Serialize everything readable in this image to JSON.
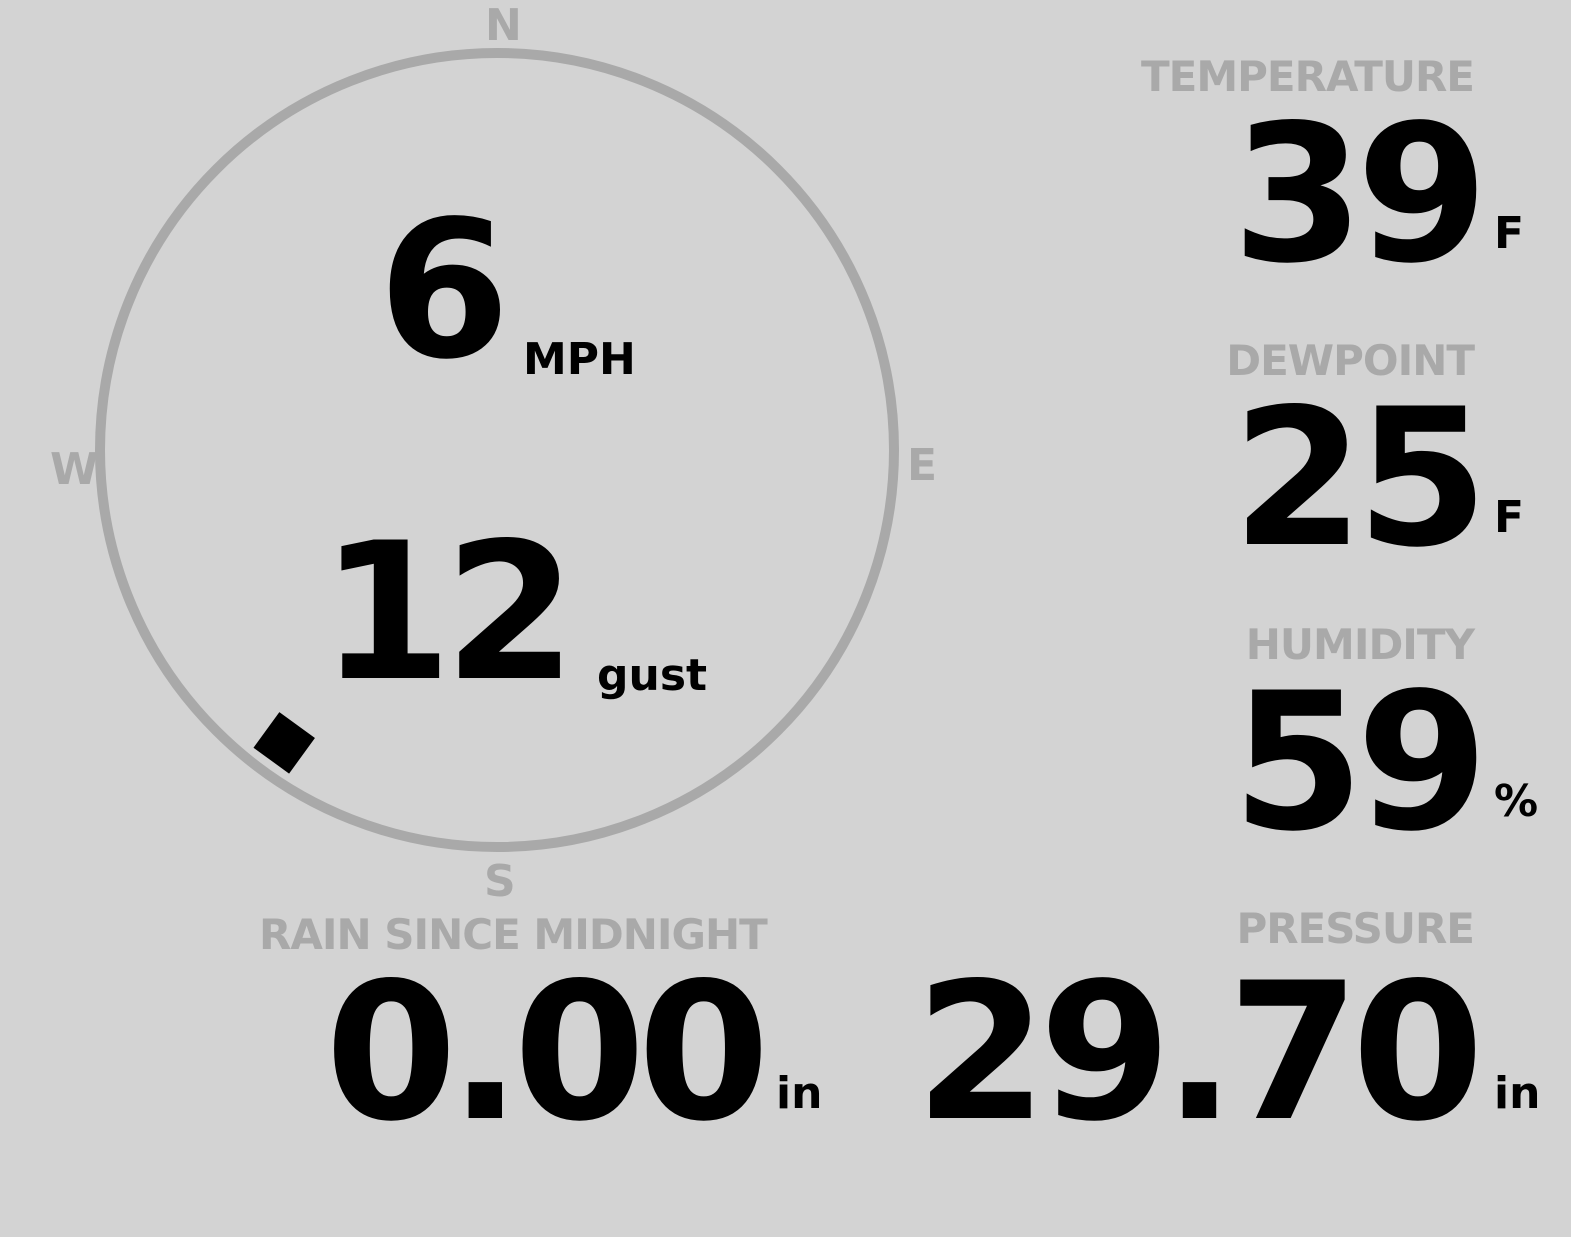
{
  "wind": {
    "speed": "6",
    "speed_unit": "MPH",
    "gust": "12",
    "gust_unit": "gust",
    "direction_deg": 216,
    "compass": {
      "n": "N",
      "e": "E",
      "s": "S",
      "w": "W"
    }
  },
  "temperature": {
    "label": "TEMPERATURE",
    "value": "39",
    "unit": "F"
  },
  "dewpoint": {
    "label": "DEWPOINT",
    "value": "25",
    "unit": "F"
  },
  "humidity": {
    "label": "HUMIDITY",
    "value": "59",
    "unit": "%"
  },
  "rain": {
    "label": "RAIN SINCE MIDNIGHT",
    "value": "0.00",
    "unit": "in"
  },
  "pressure": {
    "label": "PRESSURE",
    "value": "29.70",
    "unit": "in"
  },
  "colors": {
    "background": "#d3d3d3",
    "label": "#a9a9a9",
    "value": "#000000"
  }
}
